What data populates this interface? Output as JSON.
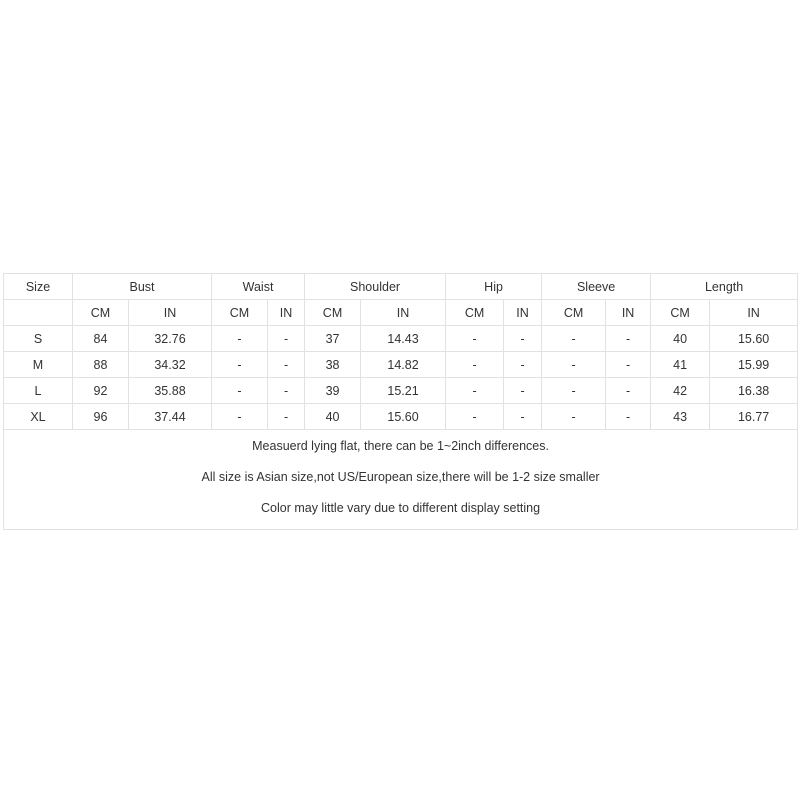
{
  "table": {
    "size_header": "Size",
    "groups": [
      "Bust",
      "Waist",
      "Shoulder",
      "Hip",
      "Sleeve",
      "Length"
    ],
    "sub_headers": [
      "CM",
      "IN"
    ],
    "rows": [
      [
        "S",
        "84",
        "32.76",
        "-",
        "-",
        "37",
        "14.43",
        "-",
        "-",
        "-",
        "-",
        "40",
        "15.60"
      ],
      [
        "M",
        "88",
        "34.32",
        "-",
        "-",
        "38",
        "14.82",
        "-",
        "-",
        "-",
        "-",
        "41",
        "15.99"
      ],
      [
        "L",
        "92",
        "35.88",
        "-",
        "-",
        "39",
        "15.21",
        "-",
        "-",
        "-",
        "-",
        "42",
        "16.38"
      ],
      [
        "XL",
        "96",
        "37.44",
        "-",
        "-",
        "40",
        "15.60",
        "-",
        "-",
        "-",
        "-",
        "43",
        "16.77"
      ]
    ],
    "notes": [
      "Measuerd lying flat, there can be 1~2inch differences.",
      "All size is Asian size,not US/European size,there will be 1-2 size smaller",
      "Color may little vary due to different display setting"
    ]
  }
}
